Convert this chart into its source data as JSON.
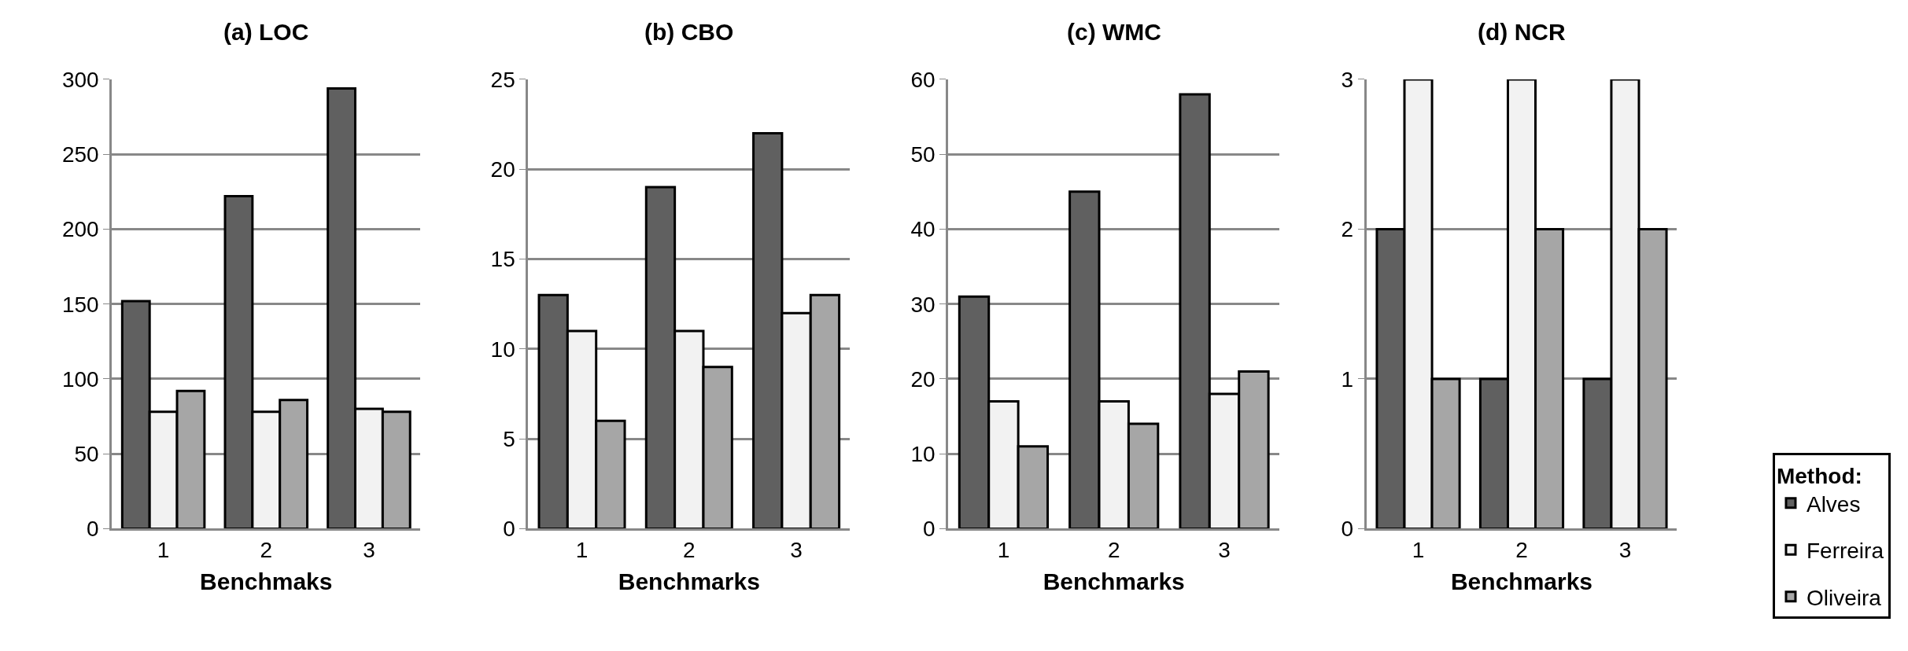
{
  "chart_data": [
    {
      "type": "bar",
      "title": "(a) LOC",
      "xlabel": "Benchmaks",
      "categories": [
        "1",
        "2",
        "3"
      ],
      "ylim": [
        0,
        300
      ],
      "yticks": [
        0,
        50,
        100,
        150,
        200,
        250,
        300
      ],
      "grid": "y",
      "series": [
        {
          "color": "#606060",
          "values": [
            152,
            222,
            294
          ]
        },
        {
          "color": "#f2f2f2",
          "values": [
            78,
            78,
            80
          ]
        },
        {
          "color": "#a6a6a6",
          "values": [
            92,
            86,
            78
          ]
        }
      ]
    },
    {
      "type": "bar",
      "title": "(b) CBO",
      "xlabel": "Benchmarks",
      "categories": [
        "1",
        "2",
        "3"
      ],
      "ylim": [
        0,
        25
      ],
      "yticks": [
        0,
        5,
        10,
        15,
        20,
        25
      ],
      "grid": "y",
      "series": [
        {
          "color": "#606060",
          "values": [
            13,
            19,
            22
          ]
        },
        {
          "color": "#f2f2f2",
          "values": [
            11,
            11,
            12
          ]
        },
        {
          "color": "#a6a6a6",
          "values": [
            6,
            9,
            13
          ]
        }
      ]
    },
    {
      "type": "bar",
      "title": "(c) WMC",
      "xlabel": "Benchmarks",
      "categories": [
        "1",
        "2",
        "3"
      ],
      "ylim": [
        0,
        60
      ],
      "yticks": [
        0,
        10,
        20,
        30,
        40,
        50,
        60
      ],
      "grid": "y",
      "series": [
        {
          "color": "#606060",
          "values": [
            31,
            45,
            58
          ]
        },
        {
          "color": "#f2f2f2",
          "values": [
            17,
            17,
            18
          ]
        },
        {
          "color": "#a6a6a6",
          "values": [
            11,
            14,
            21
          ]
        }
      ]
    },
    {
      "type": "bar",
      "title": "(d) NCR",
      "xlabel": "Benchmarks",
      "categories": [
        "1",
        "2",
        "3"
      ],
      "ylim": [
        0,
        3
      ],
      "yticks": [
        0,
        1,
        2,
        3
      ],
      "grid": "y",
      "legend": "bottom right",
      "legend_title": "Method:",
      "series": [
        {
          "name": "Alves",
          "color": "#606060",
          "values": [
            2,
            1,
            1
          ]
        },
        {
          "name": "Ferreira",
          "color": "#f2f2f2",
          "values": [
            3,
            3,
            3
          ]
        },
        {
          "name": "Oliveira",
          "color": "#a6a6a6",
          "values": [
            1,
            2,
            2
          ]
        }
      ]
    }
  ]
}
